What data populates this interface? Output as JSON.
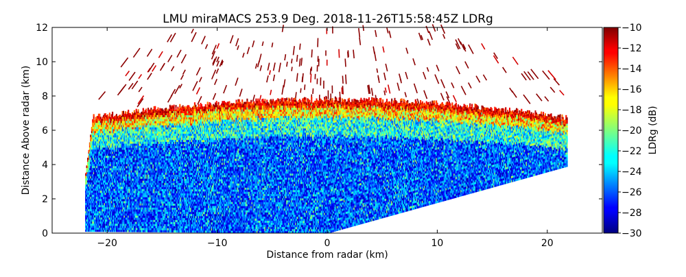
{
  "chart_data": {
    "type": "heatmap",
    "title": "LMU miraMACS 253.9 Deg. 2018-11-26T15:58:45Z  LDRg",
    "xlabel": "Distance from radar (km)",
    "ylabel": "Distance Above radar  (km)",
    "xlim": [
      -25,
      25
    ],
    "ylim": [
      0,
      12
    ],
    "xticks": [
      "−20",
      "−10",
      "0",
      "10",
      "20"
    ],
    "xtick_values": [
      -20,
      -10,
      0,
      10,
      20
    ],
    "yticks": [
      "0",
      "2",
      "4",
      "6",
      "8",
      "10",
      "12"
    ],
    "ytick_values": [
      0,
      2,
      4,
      6,
      8,
      10,
      12
    ],
    "colorbar": {
      "label": "LDRg (dB)",
      "range": [
        -30,
        -10
      ],
      "ticks": [
        "−10",
        "−12",
        "−14",
        "−16",
        "−18",
        "−20",
        "−22",
        "−24",
        "−26",
        "−28",
        "−30"
      ],
      "tick_values": [
        -10,
        -12,
        -14,
        -16,
        -18,
        -20,
        -22,
        -24,
        -26,
        -28,
        -30
      ],
      "colormap": "jet"
    },
    "scan": {
      "azimuth_deg": 253.9,
      "left_edge_x_km": -22,
      "right_edge_x_km": 21.8,
      "right_edge_top_y_km": 3.9,
      "cloud_top_km": 7.8,
      "noise_extends_to_km": 12
    },
    "layers": [
      {
        "name": "cloud body",
        "height_km": [
          0,
          6
        ],
        "ldr_db": [
          -30,
          -24
        ]
      },
      {
        "name": "cloud-top transition",
        "height_km": [
          6,
          7.2
        ],
        "ldr_db": [
          -24,
          -16
        ]
      },
      {
        "name": "cloud top",
        "height_km": [
          7.2,
          8
        ],
        "ldr_db": [
          -16,
          -10
        ]
      },
      {
        "name": "noise above cloud",
        "height_km": [
          8,
          12
        ],
        "ldr_db": [
          -12,
          -10
        ]
      }
    ]
  }
}
